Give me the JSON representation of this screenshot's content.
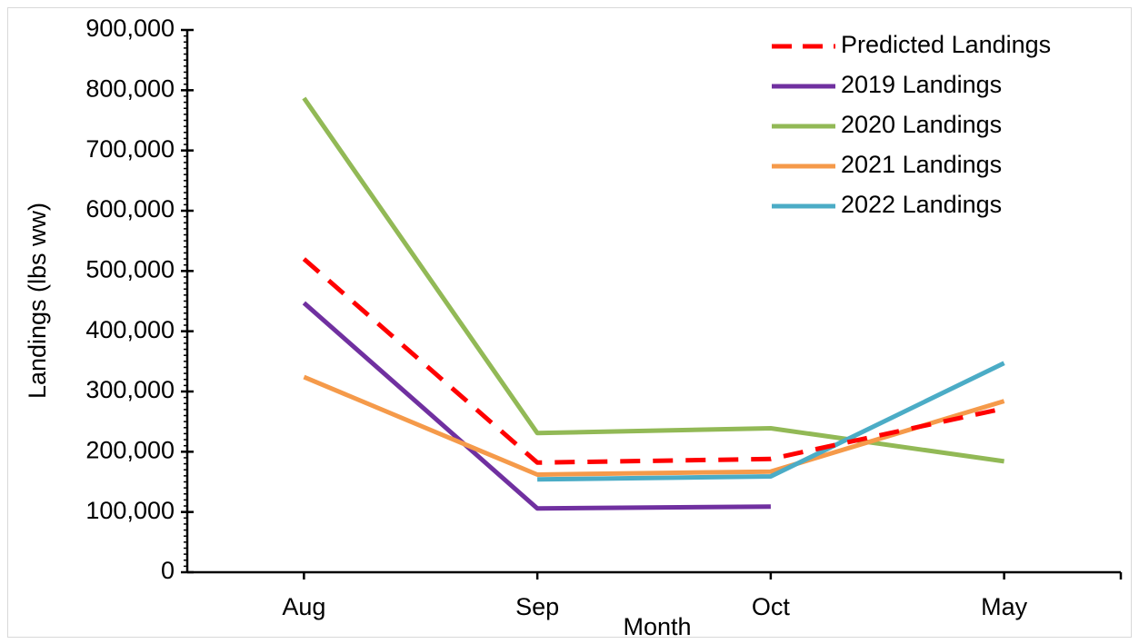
{
  "chart_data": {
    "type": "line",
    "categories": [
      "Aug",
      "Sep",
      "Oct",
      "May"
    ],
    "xlabel": "Month",
    "ylabel": "Landings (lbs ww)",
    "ylim": [
      0,
      900000
    ],
    "yticks": [
      "0",
      "100,000",
      "200,000",
      "300,000",
      "400,000",
      "500,000",
      "600,000",
      "700,000",
      "800,000",
      "900,000"
    ],
    "grid": false,
    "legend_position": "top-right",
    "series": [
      {
        "name": "Predicted Landings",
        "color": "#ff0000",
        "dash": true,
        "values": [
          520000,
          182000,
          188000,
          272000
        ]
      },
      {
        "name": "2019 Landings",
        "color": "#7030a0",
        "dash": false,
        "values": [
          447000,
          106000,
          109000,
          null
        ]
      },
      {
        "name": "2020 Landings",
        "color": "#92b956",
        "dash": false,
        "values": [
          787000,
          231000,
          239000,
          184000
        ]
      },
      {
        "name": "2021 Landings",
        "color": "#f59a4a",
        "dash": false,
        "values": [
          324000,
          162000,
          167000,
          284000
        ]
      },
      {
        "name": "2022 Landings",
        "color": "#4bacc6",
        "dash": false,
        "values": [
          null,
          154000,
          159000,
          347000
        ]
      }
    ]
  }
}
